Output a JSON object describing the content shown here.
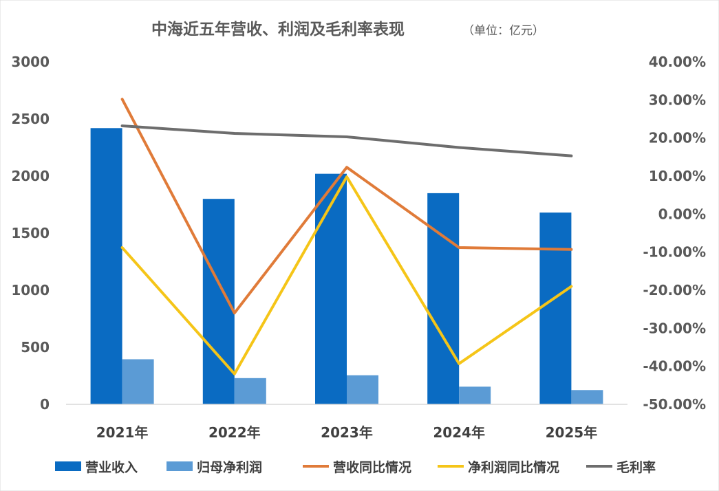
{
  "chart_data": {
    "type": "bar+line",
    "title": "中海近五年营收、利润及毛利率表现",
    "unit_note": "（单位：亿元）",
    "categories": [
      "2021年",
      "2022年",
      "2023年",
      "2024年",
      "2025年"
    ],
    "y_left": {
      "ylim": [
        0,
        3000
      ],
      "ticks": [
        "0",
        "500",
        "1000",
        "1500",
        "2000",
        "2500",
        "3000"
      ]
    },
    "y_right": {
      "ylim": [
        -0.5,
        0.4
      ],
      "ticks": [
        "-50.00%",
        "-40.00%",
        "-30.00%",
        "-20.00%",
        "-10.00%",
        "0.00%",
        "10.00%",
        "20.00%",
        "30.00%",
        "40.00%"
      ]
    },
    "bar_series": [
      {
        "name": "营业收入",
        "color": "#0A6BC2",
        "values": [
          2420,
          1800,
          2020,
          1850,
          1680
        ]
      },
      {
        "name": "归母净利润",
        "color": "#5B9BD5",
        "values": [
          395,
          230,
          255,
          155,
          125
        ]
      }
    ],
    "line_series": [
      {
        "name": "营收同比情况",
        "color": "#E07B39",
        "values": [
          0.302,
          -0.26,
          0.123,
          -0.088,
          -0.093
        ]
      },
      {
        "name": "净利润同比情况",
        "color": "#F5C518",
        "values": [
          -0.088,
          -0.42,
          0.098,
          -0.393,
          -0.19
        ]
      },
      {
        "name": "毛利率",
        "color": "#6D6D6D",
        "values": [
          0.232,
          0.212,
          0.203,
          0.175,
          0.153
        ]
      }
    ],
    "legend_position": "bottom",
    "grid": false
  }
}
